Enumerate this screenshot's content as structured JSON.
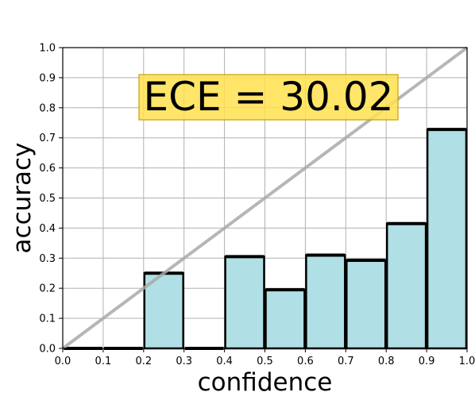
{
  "chart_data": {
    "type": "bar",
    "xlabel": "confidence",
    "ylabel": "accuracy",
    "annotation": "ECE = 30.02",
    "xlim": [
      0.0,
      1.0
    ],
    "ylim": [
      0.0,
      1.0
    ],
    "grid": true,
    "xticks": [
      "0.0",
      "0.1",
      "0.2",
      "0.3",
      "0.4",
      "0.5",
      "0.6",
      "0.7",
      "0.8",
      "0.9",
      "1.0"
    ],
    "yticks": [
      "0.0",
      "0.1",
      "0.2",
      "0.3",
      "0.4",
      "0.5",
      "0.6",
      "0.7",
      "0.8",
      "0.9",
      "1.0"
    ],
    "bins": [
      {
        "x0": 0.0,
        "x1": 0.1,
        "value": 0.0
      },
      {
        "x0": 0.1,
        "x1": 0.2,
        "value": 0.0
      },
      {
        "x0": 0.2,
        "x1": 0.3,
        "value": 0.25
      },
      {
        "x0": 0.3,
        "x1": 0.4,
        "value": 0.0
      },
      {
        "x0": 0.4,
        "x1": 0.5,
        "value": 0.305
      },
      {
        "x0": 0.5,
        "x1": 0.6,
        "value": 0.195
      },
      {
        "x0": 0.6,
        "x1": 0.7,
        "value": 0.31
      },
      {
        "x0": 0.7,
        "x1": 0.8,
        "value": 0.293
      },
      {
        "x0": 0.8,
        "x1": 0.9,
        "value": 0.415
      },
      {
        "x0": 0.9,
        "x1": 1.0,
        "value": 0.728
      }
    ],
    "reference_line": {
      "from": [
        0.0,
        0.0
      ],
      "to": [
        1.0,
        1.0
      ]
    },
    "colors": {
      "bar_fill": "#b0dfe5",
      "bar_edge": "#000000",
      "diagonal": "#a9a9a9",
      "grid": "#b0b0b0",
      "annotation_bg": "#ffe04d",
      "annotation_border": "#c8a000"
    }
  }
}
